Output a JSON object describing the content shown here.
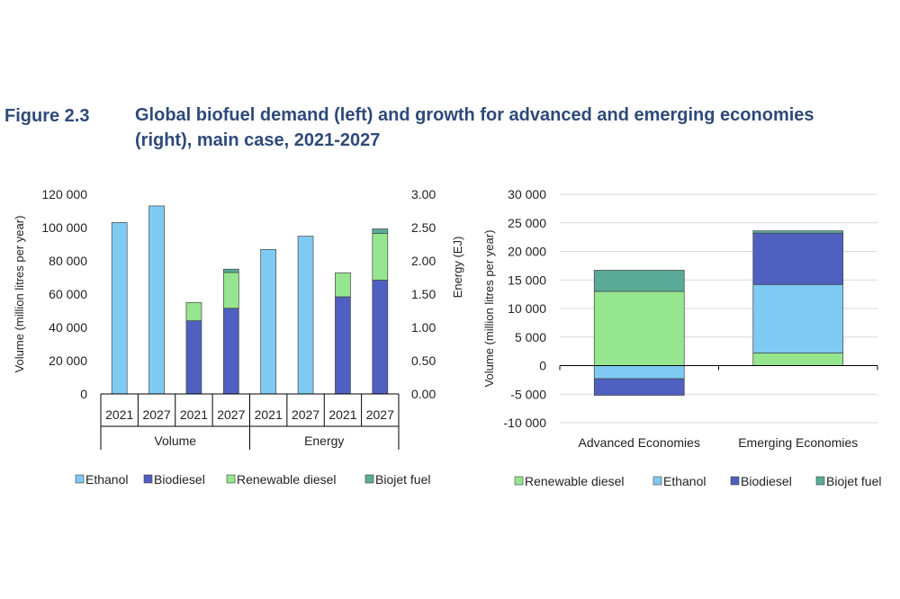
{
  "figure": {
    "number": "Figure 2.3",
    "title": "Global biofuel demand (left) and growth for advanced and emerging economies (right), main case, 2021-2027"
  },
  "colors": {
    "ethanol": "#7fcaf2",
    "biodiesel": "#5060c0",
    "renewable_diesel": "#96e58f",
    "biojet_fuel": "#5aaa98",
    "grid": "#d9d9d9",
    "axis": "#000000",
    "text": "#222222"
  },
  "chart_data": [
    {
      "type": "bar",
      "stacked": true,
      "dual_axis": true,
      "xlabel": "",
      "ylabel": "Volume (million litres per year)",
      "y2label": "Energy (EJ)",
      "ylim": [
        0,
        120000
      ],
      "yticks": [
        "120 000",
        "100 000",
        "80 000",
        "60 000",
        "40 000",
        "20 000",
        "0"
      ],
      "y2lim": [
        0,
        3
      ],
      "y2ticks": [
        "3.00",
        "2.50",
        "2.00",
        "1.50",
        "1.00",
        "0.50",
        "0.00"
      ],
      "grid": false,
      "legend": [
        "Ethanol",
        "Biodiesel",
        "Renewable diesel",
        "Biojet fuel"
      ],
      "groups": [
        {
          "label": "Volume",
          "axis": "left",
          "bars": [
            {
              "year": "2021",
              "series": "ethanol",
              "value": 103000
            },
            {
              "year": "2027",
              "series": "ethanol",
              "value": 113000
            },
            {
              "year": "2021",
              "stack": {
                "biodiesel": 44000,
                "renewable_diesel": 11000,
                "biojet_fuel": 0
              }
            },
            {
              "year": "2027",
              "stack": {
                "biodiesel": 51500,
                "renewable_diesel": 21500,
                "biojet_fuel": 2000
              }
            }
          ]
        },
        {
          "label": "Energy",
          "axis": "right",
          "bars": [
            {
              "year": "2021",
              "series": "ethanol",
              "value": 2.17
            },
            {
              "year": "2027",
              "series": "ethanol",
              "value": 2.37
            },
            {
              "year": "2021",
              "stack": {
                "biodiesel": 1.46,
                "renewable_diesel": 0.36,
                "biojet_fuel": 0
              }
            },
            {
              "year": "2027",
              "stack": {
                "biodiesel": 1.71,
                "renewable_diesel": 0.7,
                "biojet_fuel": 0.07
              }
            }
          ]
        }
      ]
    },
    {
      "type": "bar",
      "stacked": true,
      "xlabel": "",
      "ylabel": "Volume (million litres per year)",
      "ylim": [
        -10000,
        30000
      ],
      "yticks": [
        "30 000",
        "25 000",
        "20 000",
        "15 000",
        "10 000",
        "5 000",
        "0",
        "-5 000",
        "-10 000"
      ],
      "grid": true,
      "legend": [
        "Renewable diesel",
        "Ethanol",
        "Biodiesel",
        "Biojet fuel"
      ],
      "categories": [
        "Advanced Economies",
        "Emerging Economies"
      ],
      "series": [
        {
          "name": "Renewable diesel",
          "key": "renewable_diesel",
          "values": [
            13000,
            2200
          ]
        },
        {
          "name": "Ethanol",
          "key": "ethanol",
          "values": [
            -2300,
            12000
          ]
        },
        {
          "name": "Biodiesel",
          "key": "biodiesel",
          "values": [
            -2900,
            9000
          ]
        },
        {
          "name": "Biojet fuel",
          "key": "biojet_fuel",
          "values": [
            3700,
            400
          ]
        }
      ]
    }
  ]
}
